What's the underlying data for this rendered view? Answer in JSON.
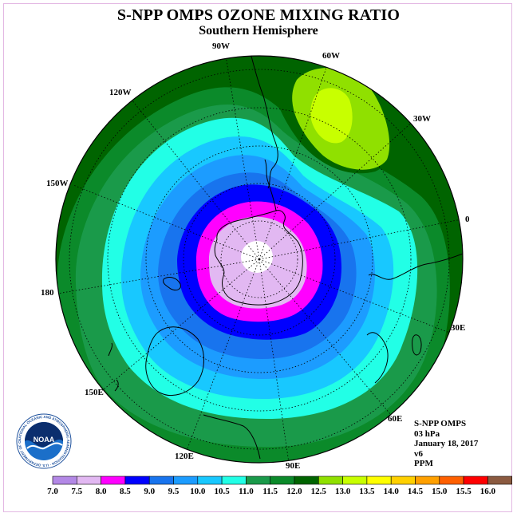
{
  "title": "S-NPP OMPS OZONE MIXING RATIO",
  "subtitle": "Southern Hemisphere",
  "longitude_labels": [
    "90W",
    "60W",
    "120W",
    "30W",
    "150W",
    "0",
    "180",
    "30E",
    "150E",
    "60E",
    "120E",
    "90E"
  ],
  "info": {
    "instrument": "S-NPP OMPS",
    "pressure_level": "03 hPa",
    "date": "January 18, 2017",
    "version": "v6",
    "units": "PPM"
  },
  "logo": {
    "text": "NOAA",
    "ring_text": "NATIONAL OCEANIC AND ATMOSPHERIC ADMINISTRATION · U.S. DEPARTMENT OF COMMERCE"
  },
  "colorbar": {
    "ticks": [
      "7.0",
      "7.5",
      "8.0",
      "8.5",
      "9.0",
      "9.5",
      "10.0",
      "10.5",
      "11.0",
      "11.5",
      "12.0",
      "12.5",
      "13.0",
      "13.5",
      "14.0",
      "14.5",
      "15.0",
      "15.5",
      "16.0"
    ],
    "colors": [
      "#b388e6",
      "#e2b8f2",
      "#ff00ff",
      "#0000ff",
      "#1874ee",
      "#1c9cff",
      "#18c8ff",
      "#22ffe6",
      "#1a9a4a",
      "#0b8a2a",
      "#006400",
      "#90e000",
      "#c8ff00",
      "#ffff00",
      "#ffd000",
      "#ffa000",
      "#ff6000",
      "#ff0000",
      "#8b5a40"
    ]
  }
}
